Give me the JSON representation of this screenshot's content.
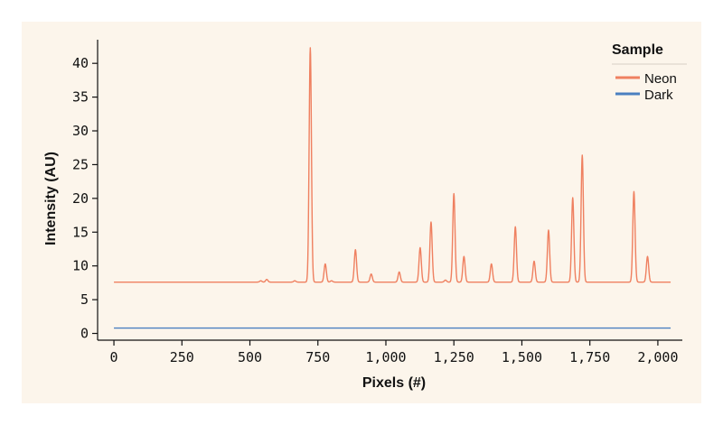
{
  "chart_data": {
    "type": "line",
    "xlabel": "Pixels (#)",
    "ylabel": "Intensity (AU)",
    "xlim": [
      -60,
      2090
    ],
    "ylim": [
      -1.0,
      43.5
    ],
    "x_ticks": [
      0,
      250,
      500,
      750,
      1000,
      1250,
      1500,
      1750,
      2000
    ],
    "x_tick_labels": [
      "0",
      "250",
      "500",
      "750",
      "1,000",
      "1,250",
      "1,500",
      "1,750",
      "2,000"
    ],
    "y_ticks": [
      0,
      5,
      10,
      15,
      20,
      25,
      30,
      35,
      40
    ],
    "y_tick_labels": [
      "0",
      "5",
      "10",
      "15",
      "20",
      "25",
      "30",
      "35",
      "40"
    ],
    "grid": false,
    "legend": {
      "title": "Sample",
      "position": "top-right"
    },
    "x_range": [
      0,
      2047
    ],
    "series": [
      {
        "name": "Neon",
        "color": "#ef8060",
        "baseline": 7.6,
        "peaks": [
          {
            "x": 540,
            "y": 7.8
          },
          {
            "x": 562,
            "y": 8.0
          },
          {
            "x": 665,
            "y": 7.8
          },
          {
            "x": 722,
            "y": 42.3
          },
          {
            "x": 777,
            "y": 10.3
          },
          {
            "x": 800,
            "y": 7.8
          },
          {
            "x": 888,
            "y": 12.4
          },
          {
            "x": 946,
            "y": 8.8
          },
          {
            "x": 1049,
            "y": 9.1
          },
          {
            "x": 1126,
            "y": 12.7
          },
          {
            "x": 1166,
            "y": 16.5
          },
          {
            "x": 1219,
            "y": 7.9
          },
          {
            "x": 1250,
            "y": 20.7
          },
          {
            "x": 1287,
            "y": 11.4
          },
          {
            "x": 1388,
            "y": 10.3
          },
          {
            "x": 1476,
            "y": 15.8
          },
          {
            "x": 1545,
            "y": 10.7
          },
          {
            "x": 1598,
            "y": 15.3
          },
          {
            "x": 1687,
            "y": 20.1
          },
          {
            "x": 1722,
            "y": 26.4
          },
          {
            "x": 1912,
            "y": 21.0
          },
          {
            "x": 1962,
            "y": 11.4
          }
        ]
      },
      {
        "name": "Dark",
        "color": "#4a7fc0",
        "baseline": 0.8,
        "peaks": []
      }
    ]
  }
}
